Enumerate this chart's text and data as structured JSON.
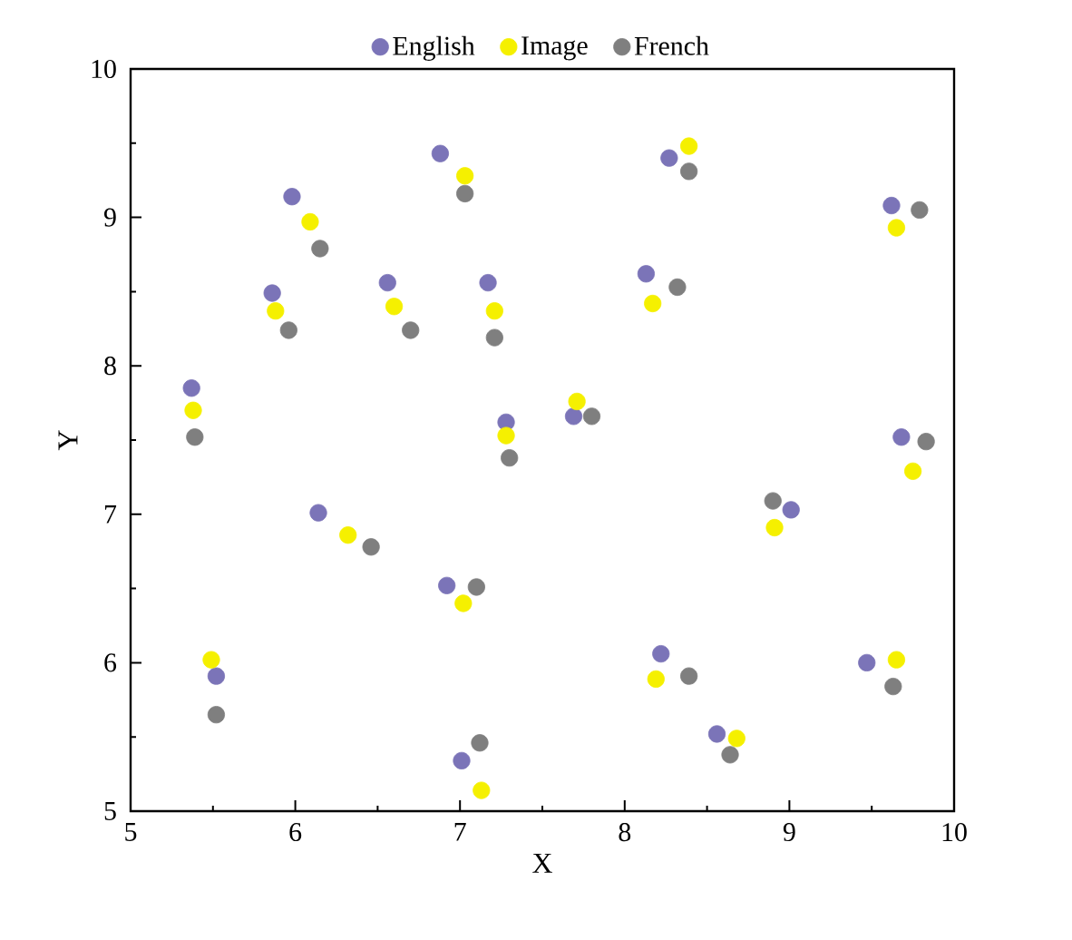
{
  "chart_data": {
    "type": "scatter",
    "xlabel": "X",
    "ylabel": "Y",
    "xlim": [
      5,
      10
    ],
    "ylim": [
      5,
      10
    ],
    "xticks": [
      5,
      6,
      7,
      8,
      9,
      10
    ],
    "yticks": [
      5,
      6,
      7,
      8,
      9,
      10
    ],
    "grid": false,
    "legend": "top",
    "series": [
      {
        "name": "English",
        "color": "#7b74b8",
        "x": [
          5.37,
          5.52,
          5.86,
          5.98,
          6.14,
          6.56,
          6.88,
          6.92,
          7.01,
          7.17,
          7.28,
          7.69,
          8.13,
          8.22,
          8.27,
          8.56,
          9.01,
          9.47,
          9.62,
          9.68
        ],
        "values": [
          7.85,
          5.91,
          8.49,
          9.14,
          7.01,
          8.56,
          9.43,
          6.52,
          5.34,
          8.56,
          7.62,
          7.66,
          8.62,
          6.06,
          9.4,
          5.52,
          7.03,
          6.0,
          9.08,
          7.52
        ]
      },
      {
        "name": "Image",
        "color": "#f5f000",
        "x": [
          5.38,
          5.49,
          5.88,
          6.09,
          6.32,
          6.6,
          7.03,
          7.02,
          7.13,
          7.21,
          7.28,
          7.71,
          8.17,
          8.19,
          8.39,
          8.68,
          8.91,
          9.65,
          9.65,
          9.75
        ],
        "values": [
          7.7,
          6.02,
          8.37,
          8.97,
          6.86,
          8.4,
          9.28,
          6.4,
          5.14,
          8.37,
          7.53,
          7.76,
          8.42,
          5.89,
          9.48,
          5.49,
          6.91,
          6.02,
          8.93,
          7.29
        ]
      },
      {
        "name": "French",
        "color": "#7f7f7f",
        "x": [
          5.39,
          5.52,
          5.96,
          6.15,
          6.46,
          6.7,
          7.03,
          7.1,
          7.12,
          7.21,
          7.3,
          7.8,
          8.32,
          8.39,
          8.39,
          8.64,
          8.9,
          9.63,
          9.79,
          9.83
        ],
        "values": [
          7.52,
          5.65,
          8.24,
          8.79,
          6.78,
          8.24,
          9.16,
          6.51,
          5.46,
          8.19,
          7.38,
          7.66,
          8.53,
          5.91,
          9.31,
          5.38,
          7.09,
          5.84,
          9.05,
          7.49
        ]
      }
    ]
  }
}
